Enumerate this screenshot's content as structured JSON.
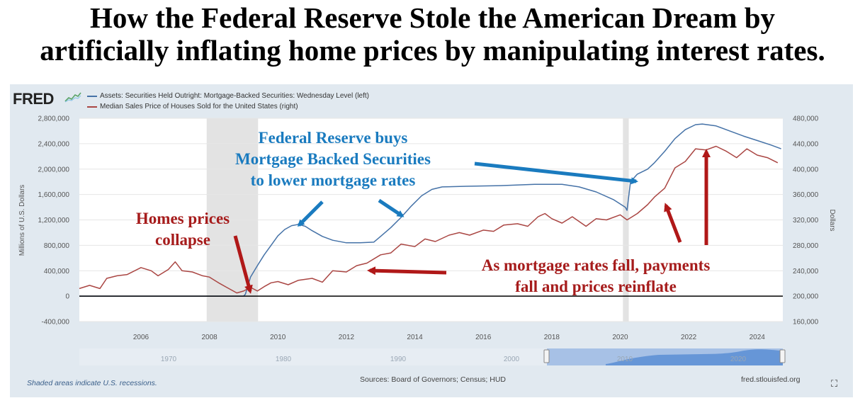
{
  "headline": {
    "line1": "How the Federal Reserve Stole the American Dream by",
    "line2": "artificially inflating home prices by manipulating interest rates."
  },
  "brand": {
    "logo_text": "FRED",
    "logo_icon": "sparkline-icon"
  },
  "legend": [
    {
      "label": "Assets: Securities Held Outright: Mortgage-Backed Securities: Wednesday Level (left)",
      "color": "#4572a7"
    },
    {
      "label": "Median Sales Price of Houses Sold for the United States (right)",
      "color": "#aa4643"
    }
  ],
  "chart_data": {
    "type": "line",
    "x_axis": {
      "min": 2004.2,
      "max": 2024.75,
      "ticks": [
        "2006",
        "2008",
        "2010",
        "2012",
        "2014",
        "2016",
        "2018",
        "2020",
        "2022",
        "2024"
      ]
    },
    "y_left": {
      "label": "Millions of U.S. Dollars",
      "min": -400000,
      "max": 2800000,
      "ticks": [
        -400000,
        0,
        400000,
        800000,
        1200000,
        1600000,
        2000000,
        2400000,
        2800000
      ],
      "tick_labels": [
        "-400,000",
        "0",
        "400,000",
        "800,000",
        "1,200,000",
        "1,600,000",
        "2,000,000",
        "2,400,000",
        "2,800,000"
      ]
    },
    "y_right": {
      "label": "Dollars",
      "min": 160000,
      "max": 480000,
      "ticks": [
        160000,
        200000,
        240000,
        280000,
        320000,
        360000,
        400000,
        440000,
        480000
      ],
      "tick_labels": [
        "160,000",
        "200,000",
        "240,000",
        "280,000",
        "320,000",
        "360,000",
        "400,000",
        "440,000",
        "480,000"
      ]
    },
    "recessions": [
      [
        2007.92,
        2009.42
      ],
      [
        2020.08,
        2020.25
      ]
    ],
    "zero_line": true,
    "grid": true,
    "series": [
      {
        "name": "Assets: Securities Held Outright: Mortgage-Backed Securities: Wednesday Level (left)",
        "axis": "left",
        "color": "#4572a7",
        "x": [
          2004.2,
          2008.0,
          2009.0,
          2009.05,
          2009.1,
          2009.2,
          2009.4,
          2009.6,
          2009.8,
          2010.0,
          2010.2,
          2010.4,
          2010.6,
          2010.8,
          2011.0,
          2011.3,
          2011.6,
          2012.0,
          2012.4,
          2012.8,
          2013.0,
          2013.3,
          2013.6,
          2013.9,
          2014.2,
          2014.5,
          2014.8,
          2015.5,
          2016.5,
          2017.5,
          2018.3,
          2018.8,
          2019.3,
          2019.8,
          2020.15,
          2020.2,
          2020.3,
          2020.5,
          2020.8,
          2021.0,
          2021.3,
          2021.6,
          2021.9,
          2022.2,
          2022.4,
          2022.8,
          2023.2,
          2023.6,
          2024.0,
          2024.4,
          2024.7
        ],
        "y": [
          0,
          0,
          0,
          30000,
          120000,
          300000,
          480000,
          650000,
          800000,
          950000,
          1050000,
          1110000,
          1130000,
          1100000,
          1030000,
          940000,
          880000,
          840000,
          840000,
          850000,
          940000,
          1080000,
          1240000,
          1420000,
          1580000,
          1680000,
          1720000,
          1730000,
          1740000,
          1760000,
          1760000,
          1720000,
          1640000,
          1520000,
          1400000,
          1350000,
          1800000,
          1920000,
          2000000,
          2100000,
          2280000,
          2480000,
          2620000,
          2700000,
          2710000,
          2680000,
          2600000,
          2520000,
          2450000,
          2380000,
          2320000
        ]
      },
      {
        "name": "Median Sales Price of Houses Sold for the United States (right)",
        "axis": "right",
        "color": "#aa4643",
        "x": [
          2004.2,
          2004.5,
          2004.8,
          2005.0,
          2005.3,
          2005.6,
          2006.0,
          2006.3,
          2006.5,
          2006.8,
          2007.0,
          2007.2,
          2007.5,
          2007.8,
          2008.0,
          2008.3,
          2008.5,
          2008.8,
          2009.0,
          2009.2,
          2009.4,
          2009.6,
          2009.8,
          2010.0,
          2010.3,
          2010.6,
          2011.0,
          2011.3,
          2011.6,
          2012.0,
          2012.3,
          2012.6,
          2013.0,
          2013.3,
          2013.6,
          2014.0,
          2014.3,
          2014.6,
          2015.0,
          2015.3,
          2015.6,
          2016.0,
          2016.3,
          2016.6,
          2017.0,
          2017.3,
          2017.6,
          2017.8,
          2018.0,
          2018.3,
          2018.6,
          2019.0,
          2019.3,
          2019.6,
          2020.0,
          2020.2,
          2020.5,
          2020.8,
          2021.0,
          2021.3,
          2021.6,
          2021.9,
          2022.2,
          2022.5,
          2022.8,
          2023.1,
          2023.4,
          2023.7,
          2024.0,
          2024.3,
          2024.6
        ],
        "y": [
          212000,
          217000,
          212000,
          228000,
          232000,
          234000,
          245000,
          240000,
          232000,
          242000,
          254000,
          240000,
          238000,
          232000,
          230000,
          220000,
          214000,
          205000,
          208000,
          214000,
          208000,
          215000,
          221000,
          223000,
          218000,
          225000,
          228000,
          222000,
          240000,
          238000,
          248000,
          252000,
          265000,
          268000,
          282000,
          278000,
          290000,
          286000,
          296000,
          300000,
          296000,
          304000,
          302000,
          312000,
          314000,
          310000,
          325000,
          330000,
          322000,
          315000,
          325000,
          310000,
          322000,
          320000,
          328000,
          320000,
          330000,
          344000,
          356000,
          370000,
          402000,
          412000,
          432000,
          430000,
          436000,
          428000,
          418000,
          432000,
          422000,
          418000,
          410000
        ]
      }
    ],
    "navigator": {
      "tick_labels": [
        "1970",
        "1980",
        "1990",
        "2000",
        "2010",
        "2020"
      ]
    }
  },
  "annotations": {
    "fed_buys": [
      "Federal Reserve buys",
      "Mortgage Backed Securities",
      "to lower mortgage rates"
    ],
    "homes_collapse": [
      "Homes prices",
      "collapse"
    ],
    "payments_fall": [
      "As mortgage rates fall, payments",
      "fall and prices reinflate"
    ]
  },
  "footer": {
    "recession_note": "Shaded areas indicate U.S. recessions.",
    "sources": "Sources: Board of Governors; Census; HUD",
    "site": "fred.stlouisfed.org",
    "expand_icon": "fullscreen-expand-icon"
  },
  "colors": {
    "panel_bg": "#e1e9f0",
    "blue_annotation": "#1a7bbf",
    "red_annotation": "#a61c1c"
  }
}
